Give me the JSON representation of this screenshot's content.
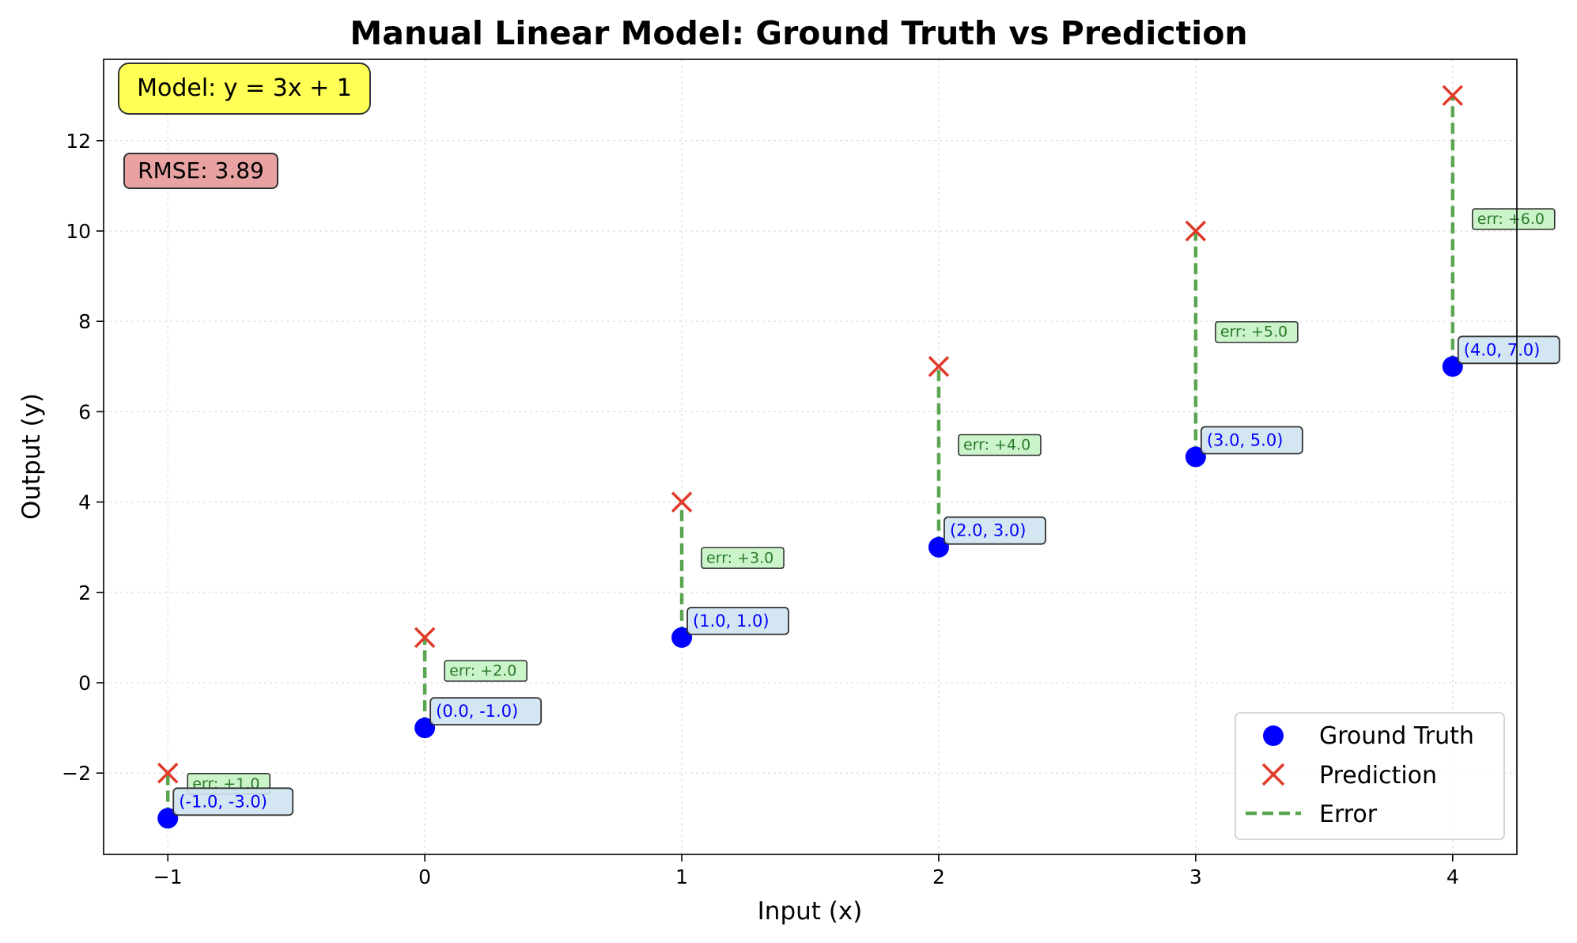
{
  "chart_data": {
    "type": "scatter",
    "title": "Manual Linear Model: Ground Truth vs Prediction",
    "xlabel": "Input (x)",
    "ylabel": "Output (y)",
    "xlim": [
      -1.25,
      4.25
    ],
    "ylim": [
      -3.8,
      13.8
    ],
    "x_ticks": [
      -1,
      0,
      1,
      2,
      3,
      4
    ],
    "x_tick_labels": [
      "−1",
      "0",
      "1",
      "2",
      "3",
      "4"
    ],
    "y_ticks": [
      -2,
      0,
      2,
      4,
      6,
      8,
      10,
      12
    ],
    "y_tick_labels": [
      "−2",
      "0",
      "2",
      "4",
      "6",
      "8",
      "10",
      "12"
    ],
    "grid": true,
    "legend_position": "bottom-right",
    "x": [
      -1,
      0,
      1,
      2,
      3,
      4
    ],
    "series": [
      {
        "name": "Ground Truth",
        "marker": "circle",
        "color": "#0000ff",
        "values": [
          -3,
          -1,
          1,
          3,
          5,
          7
        ]
      },
      {
        "name": "Prediction",
        "marker": "x",
        "color": "#e03a2a",
        "values": [
          -2,
          1,
          4,
          7,
          10,
          13
        ]
      },
      {
        "name": "Error",
        "marker": "dashed-line",
        "color": "#5aa550"
      }
    ],
    "point_labels": [
      "(-1.0, -3.0)",
      "(0.0, -1.0)",
      "(1.0, 1.0)",
      "(2.0, 3.0)",
      "(3.0, 5.0)",
      "(4.0, 7.0)"
    ],
    "error_labels": [
      "err: +1.0",
      "err: +2.0",
      "err: +3.0",
      "err: +4.0",
      "err: +5.0",
      "err: +6.0"
    ],
    "annotations": {
      "model": "Model: y = 3x + 1",
      "rmse": "RMSE: 3.89"
    },
    "colors": {
      "model_box": "#ffff55",
      "rmse_box": "#e8a2a2",
      "point_label_box": "#cfe3ef",
      "error_label_box": "#c2f2c2",
      "error_text": "#2b7a2b",
      "point_label_text": "#0000ff"
    }
  }
}
